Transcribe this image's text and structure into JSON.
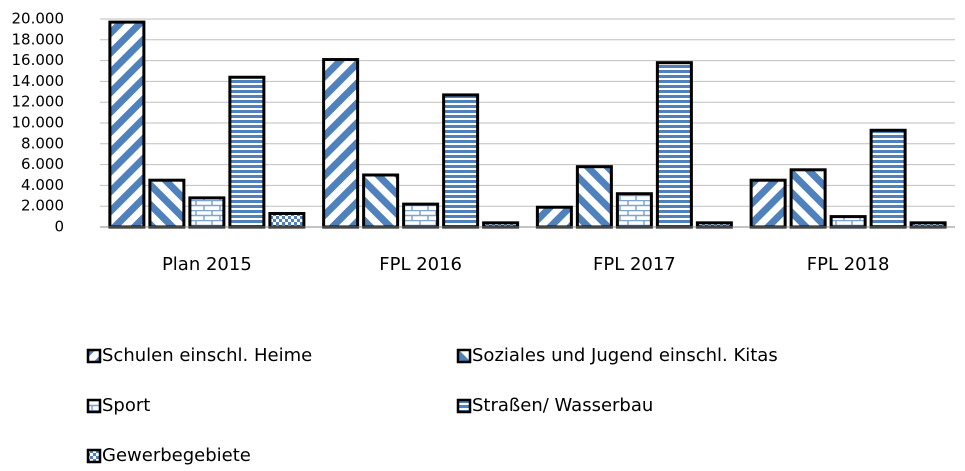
{
  "chart_data": {
    "type": "bar",
    "categories": [
      "Plan 2015",
      "FPL 2016",
      "FPL 2017",
      "FPL 2018"
    ],
    "series": [
      {
        "name": "Schulen einschl. Heime",
        "color": "#4f81bd",
        "pattern": "diagonal-down",
        "values": [
          19700,
          16100,
          1900,
          4500
        ]
      },
      {
        "name": "Soziales und Jugend einschl. Kitas",
        "color": "#4f81bd",
        "pattern": "diagonal-up",
        "values": [
          4500,
          5000,
          5800,
          5500
        ]
      },
      {
        "name": "Sport",
        "color": "#4f81bd",
        "pattern": "brick",
        "values": [
          2800,
          2200,
          3200,
          1000
        ]
      },
      {
        "name": "Straßen/ Wasserbau",
        "color": "#4f81bd",
        "pattern": "horizontal",
        "values": [
          14400,
          12700,
          15800,
          9300
        ]
      },
      {
        "name": "Gewerbegebiete",
        "color": "#4f81bd",
        "pattern": "checker",
        "values": [
          1300,
          400,
          400,
          400
        ]
      }
    ],
    "ylim": [
      0,
      20000
    ],
    "yticks": [
      0,
      {
        "value": 2000,
        "label": "2.000"
      },
      {
        "value": 4000,
        "label": "4.000"
      },
      {
        "value": 6000,
        "label": "6.000"
      },
      {
        "value": 8000,
        "label": "8.000"
      },
      {
        "value": 10000,
        "label": "10.000"
      },
      {
        "value": 12000,
        "label": "12.000"
      },
      {
        "value": 14000,
        "label": "14.000"
      },
      {
        "value": 16000,
        "label": "16.000"
      },
      {
        "value": 18000,
        "label": "18.000"
      },
      {
        "value": 20000,
        "label": "20.000"
      }
    ],
    "grid": true
  }
}
